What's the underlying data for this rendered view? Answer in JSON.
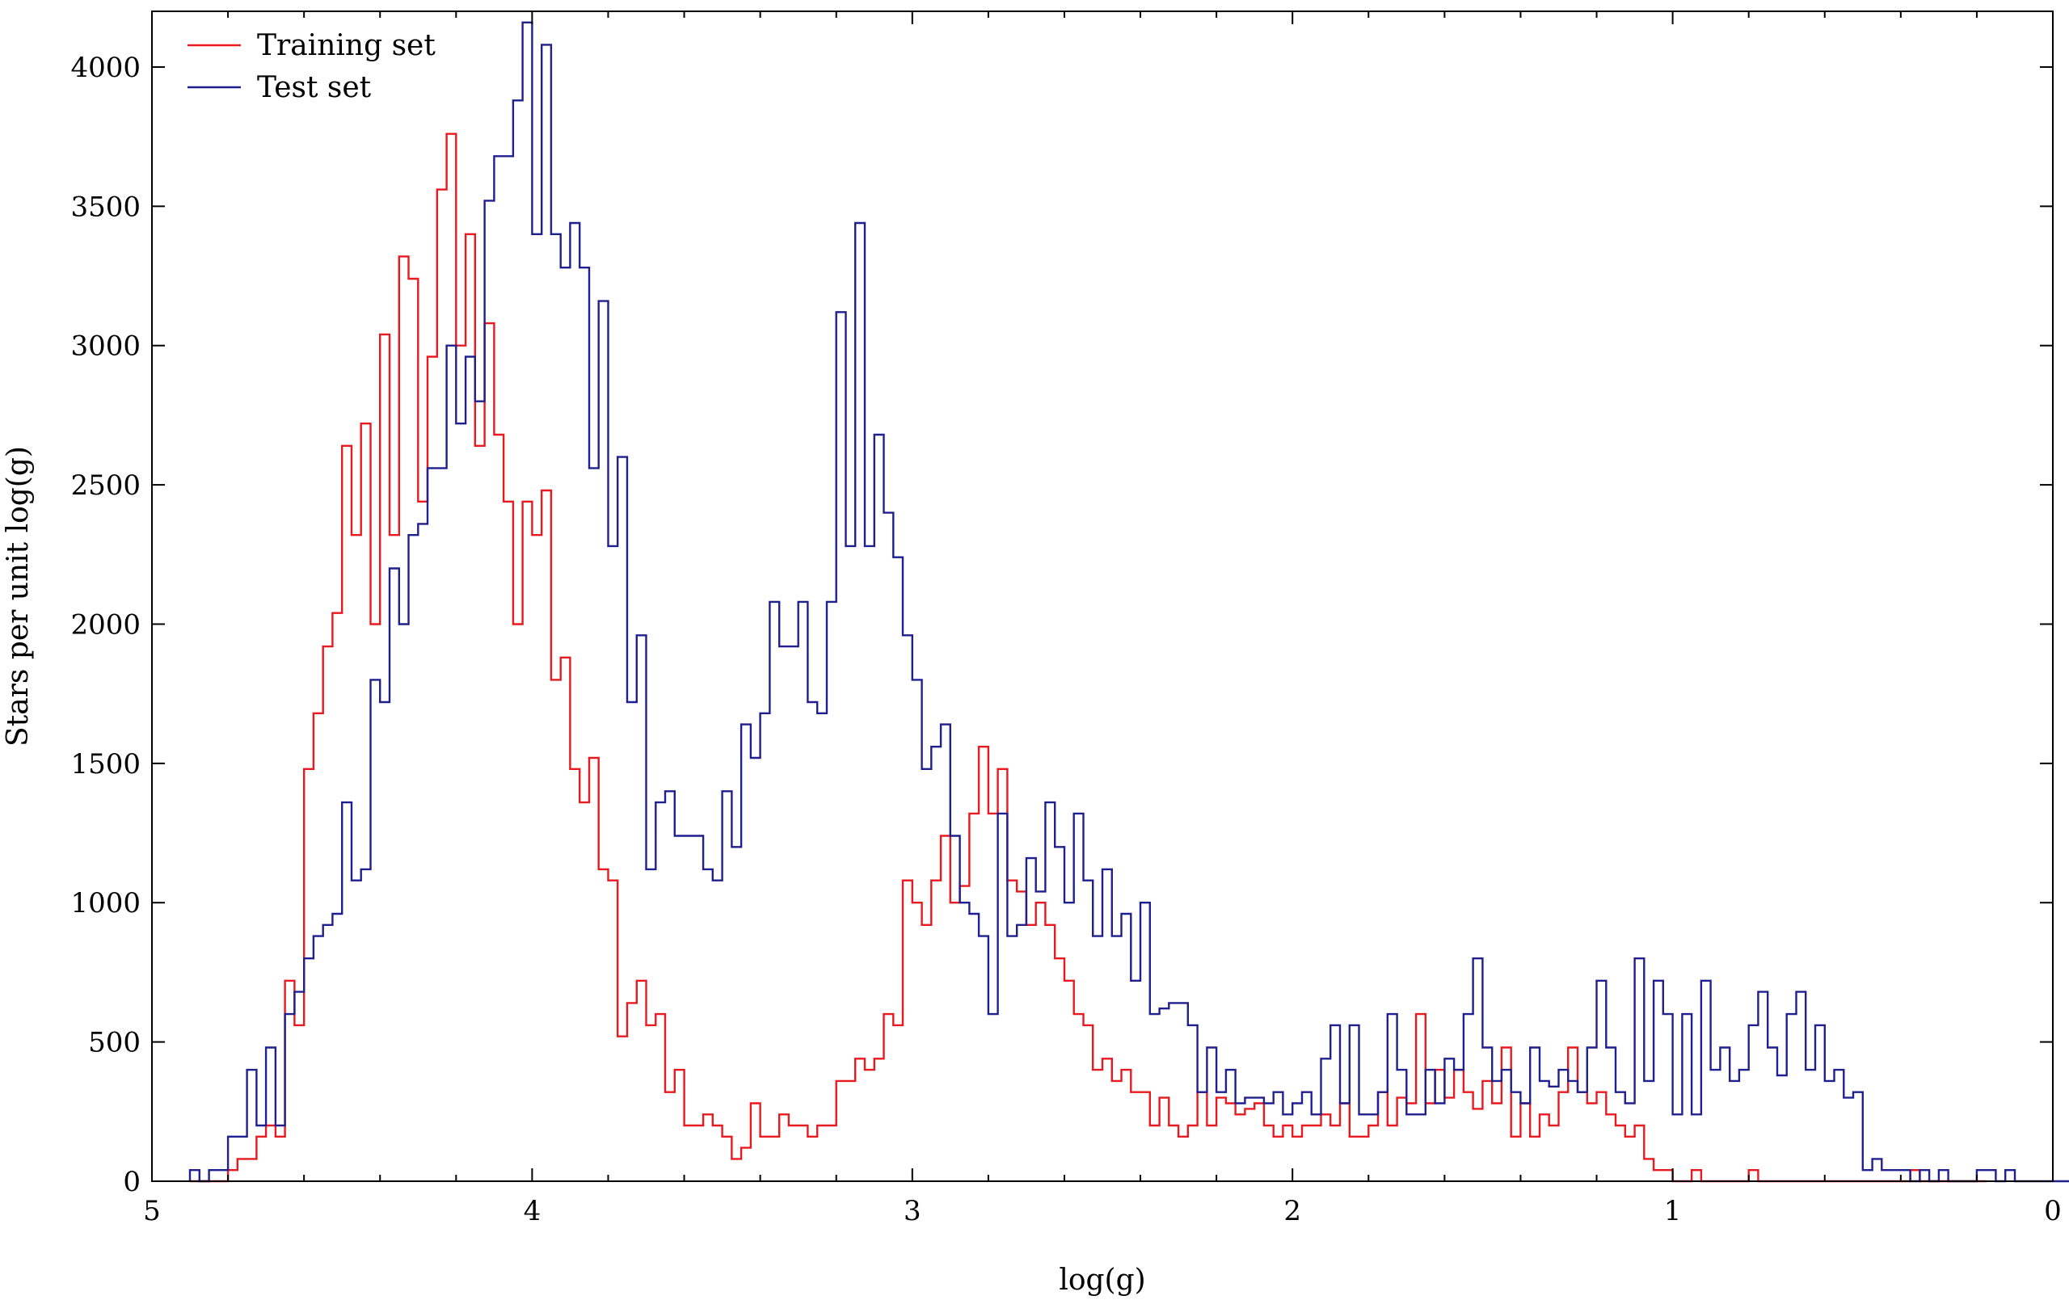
{
  "chart_data": {
    "type": "step",
    "title": "",
    "xlabel": "log(g)",
    "ylabel": "Stars per unit log(g)",
    "xlim": [
      5,
      0
    ],
    "ylim": [
      0,
      4200
    ],
    "x_ticks": [
      5,
      4,
      3,
      2,
      1,
      0
    ],
    "y_ticks": [
      0,
      500,
      1000,
      1500,
      2000,
      2500,
      3000,
      3500,
      4000
    ],
    "grid": false,
    "legend": "top-left",
    "colors": {
      "Training set": "#e8191f",
      "Test set": "#1f1f8f"
    },
    "bin_width": 0.025,
    "x_start": 4.9,
    "series": [
      {
        "name": "Training set",
        "values": [
          0,
          0,
          0,
          0,
          40,
          80,
          80,
          160,
          200,
          160,
          720,
          560,
          1480,
          1680,
          1920,
          2040,
          2640,
          2320,
          2720,
          2000,
          3040,
          2320,
          3320,
          3240,
          2440,
          2960,
          3560,
          3760,
          3000,
          3400,
          2640,
          3080,
          2680,
          2440,
          2000,
          2440,
          2320,
          2480,
          1800,
          1880,
          1480,
          1360,
          1520,
          1120,
          1080,
          520,
          640,
          720,
          560,
          600,
          320,
          400,
          200,
          200,
          240,
          200,
          160,
          80,
          120,
          280,
          160,
          160,
          240,
          200,
          200,
          160,
          200,
          200,
          360,
          360,
          440,
          400,
          440,
          600,
          560,
          1080,
          1000,
          920,
          1080,
          1240,
          1000,
          1060,
          1320,
          1560,
          1320,
          1480,
          1080,
          1040,
          920,
          1000,
          920,
          800,
          720,
          600,
          560,
          400,
          440,
          360,
          400,
          320,
          320,
          200,
          300,
          200,
          160,
          200,
          320,
          200,
          300,
          280,
          240,
          260,
          280,
          200,
          160,
          200,
          160,
          200,
          200,
          240,
          200,
          280,
          160,
          160,
          200,
          320,
          200,
          300,
          280,
          600,
          280,
          400,
          300,
          400,
          320,
          260,
          360,
          280,
          480,
          160,
          280,
          160,
          240,
          200,
          320,
          480,
          320,
          280,
          320,
          240,
          200,
          160,
          200,
          80,
          40,
          40,
          0,
          0,
          40,
          0,
          0,
          0,
          0,
          0,
          40,
          0,
          0,
          0,
          0,
          0,
          0,
          0,
          0,
          0,
          0,
          0,
          0,
          0,
          0,
          0,
          0,
          40,
          0,
          0,
          0,
          0,
          0,
          0,
          0
        ],
        "y_values_note": ""
      },
      {
        "name": "Test set",
        "values": [
          40,
          0,
          40,
          40,
          160,
          160,
          400,
          200,
          480,
          200,
          600,
          680,
          800,
          880,
          920,
          960,
          1360,
          1080,
          1120,
          1800,
          1720,
          2200,
          2000,
          2320,
          2360,
          2560,
          2560,
          3000,
          2720,
          2960,
          2800,
          3520,
          3680,
          3680,
          3880,
          4160,
          3400,
          4080,
          3400,
          3280,
          3440,
          3280,
          2560,
          3160,
          2280,
          2600,
          1720,
          1960,
          1120,
          1360,
          1400,
          1240,
          1240,
          1240,
          1120,
          1080,
          1400,
          1200,
          1640,
          1520,
          1680,
          2080,
          1920,
          1920,
          2080,
          1720,
          1680,
          2080,
          3120,
          2280,
          3440,
          2280,
          2680,
          2400,
          2240,
          1960,
          1800,
          1480,
          1560,
          1640,
          1240,
          1000,
          960,
          880,
          600,
          1320,
          880,
          920,
          1160,
          1040,
          1360,
          1200,
          1000,
          1320,
          1080,
          880,
          1120,
          880,
          960,
          720,
          1000,
          600,
          620,
          640,
          640,
          560,
          320,
          480,
          320,
          400,
          280,
          300,
          300,
          280,
          320,
          240,
          280,
          320,
          240,
          440,
          560,
          280,
          560,
          240,
          240,
          320,
          600,
          400,
          240,
          240,
          400,
          280,
          440,
          400,
          600,
          800,
          480,
          360,
          400,
          320,
          280,
          480,
          360,
          340,
          400,
          360,
          320,
          480,
          720,
          480,
          320,
          280,
          800,
          360,
          720,
          600,
          240,
          600,
          240,
          720,
          400,
          480,
          360,
          400,
          560,
          680,
          480,
          380,
          600,
          680,
          400,
          560,
          360,
          400,
          300,
          320,
          40,
          80,
          40,
          40,
          40,
          0,
          40,
          0,
          40,
          0,
          0,
          0,
          40,
          40,
          0,
          40,
          0,
          0,
          0,
          0,
          0,
          0,
          0,
          0,
          0,
          0,
          0,
          0,
          40,
          0
        ]
      }
    ]
  }
}
